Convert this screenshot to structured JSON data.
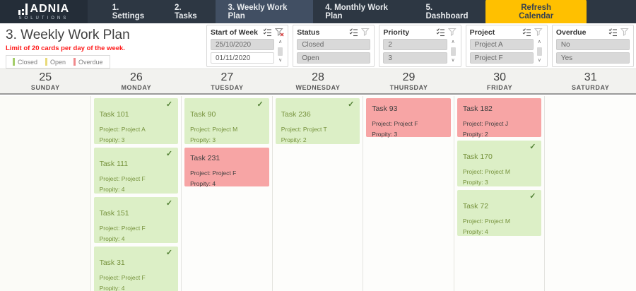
{
  "brand": {
    "name": "ADNIA",
    "tagline": "SOLUTIONS"
  },
  "nav": {
    "items": [
      {
        "label": "1. Settings"
      },
      {
        "label": "2. Tasks"
      },
      {
        "label": "3. Weekly Work Plan",
        "active": true
      },
      {
        "label": "4. Monthly Work Plan"
      },
      {
        "label": "5. Dashboard"
      }
    ],
    "refresh_label": "Refresh Calendar"
  },
  "page": {
    "title": "3. Weekly Work Plan",
    "subtitle": "Limit of 20 cards per day of the week."
  },
  "legend": {
    "items": [
      {
        "label": "Closed",
        "color": "#a4cd6a"
      },
      {
        "label": "Open",
        "color": "#e9da79"
      },
      {
        "label": "Overdue",
        "color": "#f0898c"
      }
    ]
  },
  "slicers": [
    {
      "title": "Start of Week",
      "filter_active": true,
      "scrollbar": true,
      "items": [
        {
          "label": "25/10/2020",
          "selected": true
        },
        {
          "label": "01/11/2020",
          "selected": false
        }
      ]
    },
    {
      "title": "Status",
      "filter_active": false,
      "scrollbar": false,
      "items": [
        {
          "label": "Closed",
          "selected": true
        },
        {
          "label": "Open",
          "selected": true
        }
      ]
    },
    {
      "title": "Priority",
      "filter_active": false,
      "scrollbar": true,
      "items": [
        {
          "label": "2",
          "selected": true
        },
        {
          "label": "3",
          "selected": true
        }
      ]
    },
    {
      "title": "Project",
      "filter_active": false,
      "scrollbar": true,
      "items": [
        {
          "label": "Project A",
          "selected": true
        },
        {
          "label": "Project F",
          "selected": true
        }
      ]
    },
    {
      "title": "Overdue",
      "filter_active": false,
      "scrollbar": false,
      "items": [
        {
          "label": "No",
          "selected": true
        },
        {
          "label": "Yes",
          "selected": true
        }
      ]
    }
  ],
  "calendar": {
    "days": [
      {
        "number": "25",
        "name": "SUNDAY",
        "cards": []
      },
      {
        "number": "26",
        "name": "MONDAY",
        "cards": [
          {
            "task": "Task 101",
            "project": "Project: Project A",
            "priority": "Propity: 3",
            "status": "closed"
          },
          {
            "task": "Task 111",
            "project": "Project: Project F",
            "priority": "Propity: 4",
            "status": "closed"
          },
          {
            "task": "Task 151",
            "project": "Project: Project F",
            "priority": "Propity: 4",
            "status": "closed"
          },
          {
            "task": "Task 31",
            "project": "Project: Project F",
            "priority": "Propity: 4",
            "status": "closed"
          }
        ]
      },
      {
        "number": "27",
        "name": "TUESDAY",
        "cards": [
          {
            "task": "Task 90",
            "project": "Project: Project M",
            "priority": "Propity: 3",
            "status": "closed"
          },
          {
            "task": "Task 231",
            "project": "Project: Project F",
            "priority": "Propity: 4",
            "status": "overdue"
          }
        ]
      },
      {
        "number": "28",
        "name": "WEDNESDAY",
        "cards": [
          {
            "task": "Task 236",
            "project": "Project: Project T",
            "priority": "Propity: 2",
            "status": "closed"
          }
        ]
      },
      {
        "number": "29",
        "name": "THURSDAY",
        "cards": [
          {
            "task": "Task 93",
            "project": "Project: Project F",
            "priority": "Propity: 3",
            "status": "overdue"
          }
        ]
      },
      {
        "number": "30",
        "name": "FRIDAY",
        "cards": [
          {
            "task": "Task 182",
            "project": "Project: Project J",
            "priority": "Propity: 2",
            "status": "overdue"
          },
          {
            "task": "Task 170",
            "project": "Project: Project M",
            "priority": "Propity: 3",
            "status": "closed"
          },
          {
            "task": "Task 72",
            "project": "Project: Project M",
            "priority": "Propity: 4",
            "status": "closed"
          }
        ]
      },
      {
        "number": "31",
        "name": "SATURDAY",
        "cards": []
      }
    ]
  },
  "icons": {
    "check": "✓",
    "scroll_up": "∧",
    "scroll_down": "∨"
  },
  "colors": {
    "topbar": "#2d3743",
    "accent": "#ffc000",
    "closed_card": "#dcefc6",
    "overdue_card": "#f7a5a5",
    "alert_text": "#ff1a1a"
  }
}
